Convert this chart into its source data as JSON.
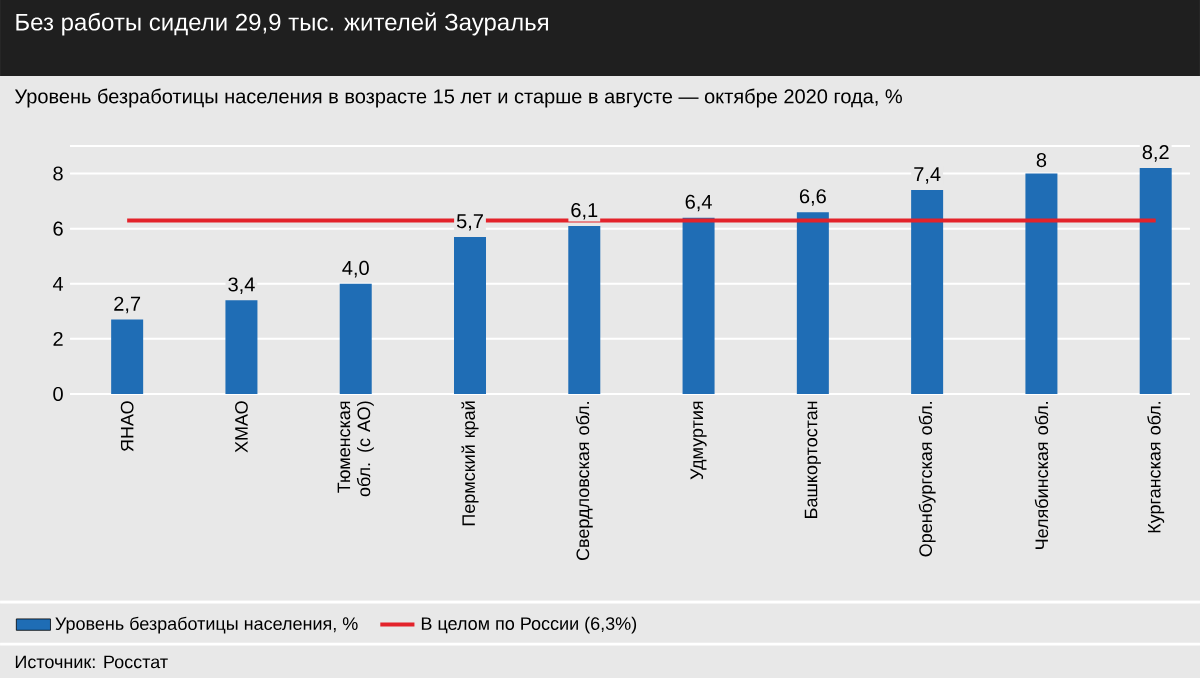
{
  "chart_data": {
    "type": "bar",
    "title": "Без работы сидели 29,9 тыс. жителей Зауралья",
    "subtitle": "Уровень безработицы населения в возрасте 15 лет и старше в августе — октябре 2020 года, %",
    "categories": [
      "ЯНАО",
      "ХМАО",
      "Тюменская обл. (с АО)",
      "Пермский край",
      "Свердловская обл.",
      "Удмуртия",
      "Башкортостан",
      "Оренбургская обл.",
      "Челябинская обл.",
      "Курганская обл."
    ],
    "series": [
      {
        "name": "Уровень безработицы населения, %",
        "color": "#1f6db5",
        "values": [
          2.7,
          3.4,
          4.0,
          5.7,
          6.1,
          6.4,
          6.6,
          7.4,
          8,
          8.2
        ],
        "value_labels": [
          "2,7",
          "3,4",
          "4,0",
          "5,7",
          "6,1",
          "6,4",
          "6,6",
          "7,4",
          "8",
          "8,2"
        ]
      }
    ],
    "ref_lines": [
      {
        "axis": "y",
        "value": 6.3,
        "label": "В целом по России (6,3%)",
        "color": "#e3232b"
      }
    ],
    "ylim": [
      0,
      9
    ],
    "yticks": [
      0,
      2,
      4,
      6,
      8,
      {
        "value": 9,
        "label": null
      }
    ],
    "grid": "y",
    "legend": "bottom",
    "annotations": [
      "Источник: Росстат"
    ]
  }
}
